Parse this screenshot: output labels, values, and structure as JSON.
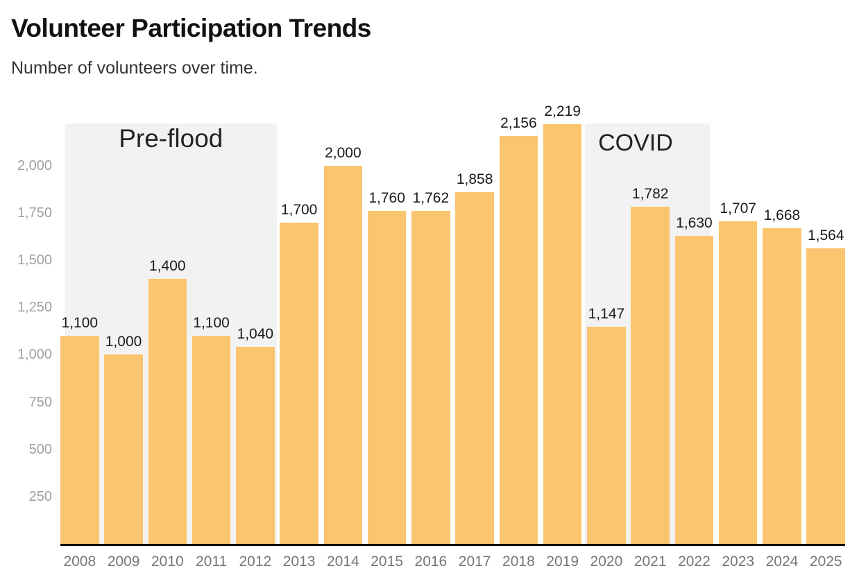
{
  "header": {
    "title": "Volunteer Participation Trends",
    "subtitle": "Number of volunteers over time."
  },
  "chart_data": {
    "type": "bar",
    "title": "Volunteer Participation Trends",
    "subtitle": "Number of volunteers over time.",
    "categories": [
      "2008",
      "2009",
      "2010",
      "2011",
      "2012",
      "2013",
      "2014",
      "2015",
      "2016",
      "2017",
      "2018",
      "2019",
      "2020",
      "2021",
      "2022",
      "2023",
      "2024",
      "2025"
    ],
    "values": [
      1100,
      1000,
      1400,
      1100,
      1040,
      1700,
      2000,
      1760,
      1762,
      1858,
      2156,
      2219,
      1147,
      1782,
      1630,
      1707,
      1668,
      1564
    ],
    "value_labels": [
      "1,100",
      "1,000",
      "1,400",
      "1,100",
      "1,040",
      "1,700",
      "2,000",
      "1,760",
      "1,762",
      "1,858",
      "2,156",
      "2,219",
      "1,147",
      "1,782",
      "1,630",
      "1,707",
      "1,668",
      "1,564"
    ],
    "xlabel": "",
    "ylabel": "",
    "ylim": [
      0,
      2250
    ],
    "yticks": [
      250,
      500,
      750,
      1000,
      1250,
      1500,
      1750,
      2000
    ],
    "ytick_labels": [
      "250",
      "500",
      "750",
      "1,000",
      "1,250",
      "1,500",
      "1,750",
      "2,000"
    ],
    "grid": false,
    "legend": false,
    "annotations": [
      {
        "label": "Pre-flood",
        "from": "2008",
        "to": "2012"
      },
      {
        "label": "COVID",
        "from": "2020",
        "to": "2022"
      }
    ],
    "colors": {
      "bar": "#FBC46E",
      "annotation_region": "#F2F2F2",
      "annotation_text": "#222222",
      "axis_line": "#000000",
      "value_label": "#1A1A1A",
      "x_tick_label": "#757575",
      "y_tick_label": "#A0A0A0",
      "title": "#111111",
      "subtitle": "#333333",
      "background": "#FFFFFF"
    }
  }
}
